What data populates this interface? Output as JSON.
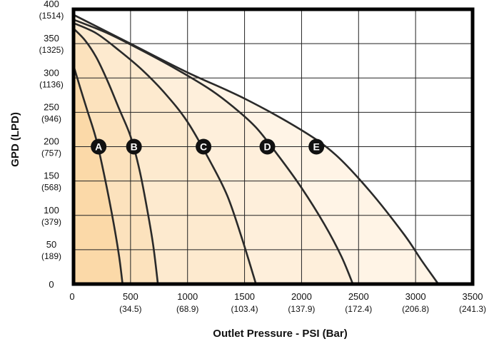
{
  "chart_data": {
    "type": "area",
    "xlabel": "Outlet Pressure - PSI (Bar)",
    "ylabel": "GPD (LPD)",
    "xlim": [
      0,
      3500
    ],
    "ylim": [
      0,
      400
    ],
    "grid": true,
    "x_ticks": [
      {
        "value": 0,
        "label": "0",
        "sublabel": ""
      },
      {
        "value": 500,
        "label": "500",
        "sublabel": "(34.5)"
      },
      {
        "value": 1000,
        "label": "1000",
        "sublabel": "(68.9)"
      },
      {
        "value": 1500,
        "label": "1500",
        "sublabel": "(103.4)"
      },
      {
        "value": 2000,
        "label": "2000",
        "sublabel": "(137.9)"
      },
      {
        "value": 2500,
        "label": "2500",
        "sublabel": "(172.4)"
      },
      {
        "value": 3000,
        "label": "3000",
        "sublabel": "(206.8)"
      },
      {
        "value": 3500,
        "label": "3500",
        "sublabel": "(241.3)"
      }
    ],
    "y_ticks": [
      {
        "value": 0,
        "label": "0",
        "sublabel": ""
      },
      {
        "value": 50,
        "label": "50",
        "sublabel": "(189)"
      },
      {
        "value": 100,
        "label": "100",
        "sublabel": "(379)"
      },
      {
        "value": 150,
        "label": "150",
        "sublabel": "(568)"
      },
      {
        "value": 200,
        "label": "200",
        "sublabel": "(757)"
      },
      {
        "value": 250,
        "label": "250",
        "sublabel": "(946)"
      },
      {
        "value": 300,
        "label": "300",
        "sublabel": "(1136)"
      },
      {
        "value": 350,
        "label": "350",
        "sublabel": "(1325)"
      },
      {
        "value": 400,
        "label": "400",
        "sublabel": "(1514)"
      }
    ],
    "series": [
      {
        "name": "A",
        "label_at": [
          220,
          200
        ],
        "fill": "#fbd9a8",
        "points": [
          [
            0,
            318
          ],
          [
            60,
            285
          ],
          [
            120,
            253
          ],
          [
            200,
            210
          ],
          [
            280,
            150
          ],
          [
            350,
            90
          ],
          [
            400,
            40
          ],
          [
            430,
            0
          ]
        ]
      },
      {
        "name": "B",
        "label_at": [
          530,
          200
        ],
        "fill": "#fce2bd",
        "points": [
          [
            0,
            372
          ],
          [
            100,
            355
          ],
          [
            200,
            330
          ],
          [
            300,
            295
          ],
          [
            400,
            255
          ],
          [
            500,
            215
          ],
          [
            580,
            165
          ],
          [
            650,
            105
          ],
          [
            700,
            55
          ],
          [
            740,
            0
          ]
        ]
      },
      {
        "name": "C",
        "label_at": [
          1140,
          200
        ],
        "fill": "#fdeacf",
        "points": [
          [
            0,
            380
          ],
          [
            200,
            365
          ],
          [
            400,
            340
          ],
          [
            600,
            312
          ],
          [
            800,
            278
          ],
          [
            1000,
            236
          ],
          [
            1200,
            178
          ],
          [
            1350,
            128
          ],
          [
            1480,
            65
          ],
          [
            1600,
            0
          ]
        ]
      },
      {
        "name": "D",
        "label_at": [
          1700,
          200
        ],
        "fill": "#feefdb",
        "points": [
          [
            0,
            385
          ],
          [
            300,
            365
          ],
          [
            600,
            340
          ],
          [
            900,
            313
          ],
          [
            1200,
            283
          ],
          [
            1400,
            258
          ],
          [
            1600,
            228
          ],
          [
            1800,
            186
          ],
          [
            2000,
            140
          ],
          [
            2200,
            87
          ],
          [
            2350,
            40
          ],
          [
            2450,
            0
          ]
        ]
      },
      {
        "name": "E",
        "label_at": [
          2130,
          200
        ],
        "fill": "#fff4e6",
        "points": [
          [
            0,
            392
          ],
          [
            500,
            350
          ],
          [
            1000,
            308
          ],
          [
            1500,
            270
          ],
          [
            2000,
            224
          ],
          [
            2300,
            188
          ],
          [
            2600,
            135
          ],
          [
            2900,
            72
          ],
          [
            3050,
            35
          ],
          [
            3200,
            0
          ]
        ]
      }
    ]
  }
}
